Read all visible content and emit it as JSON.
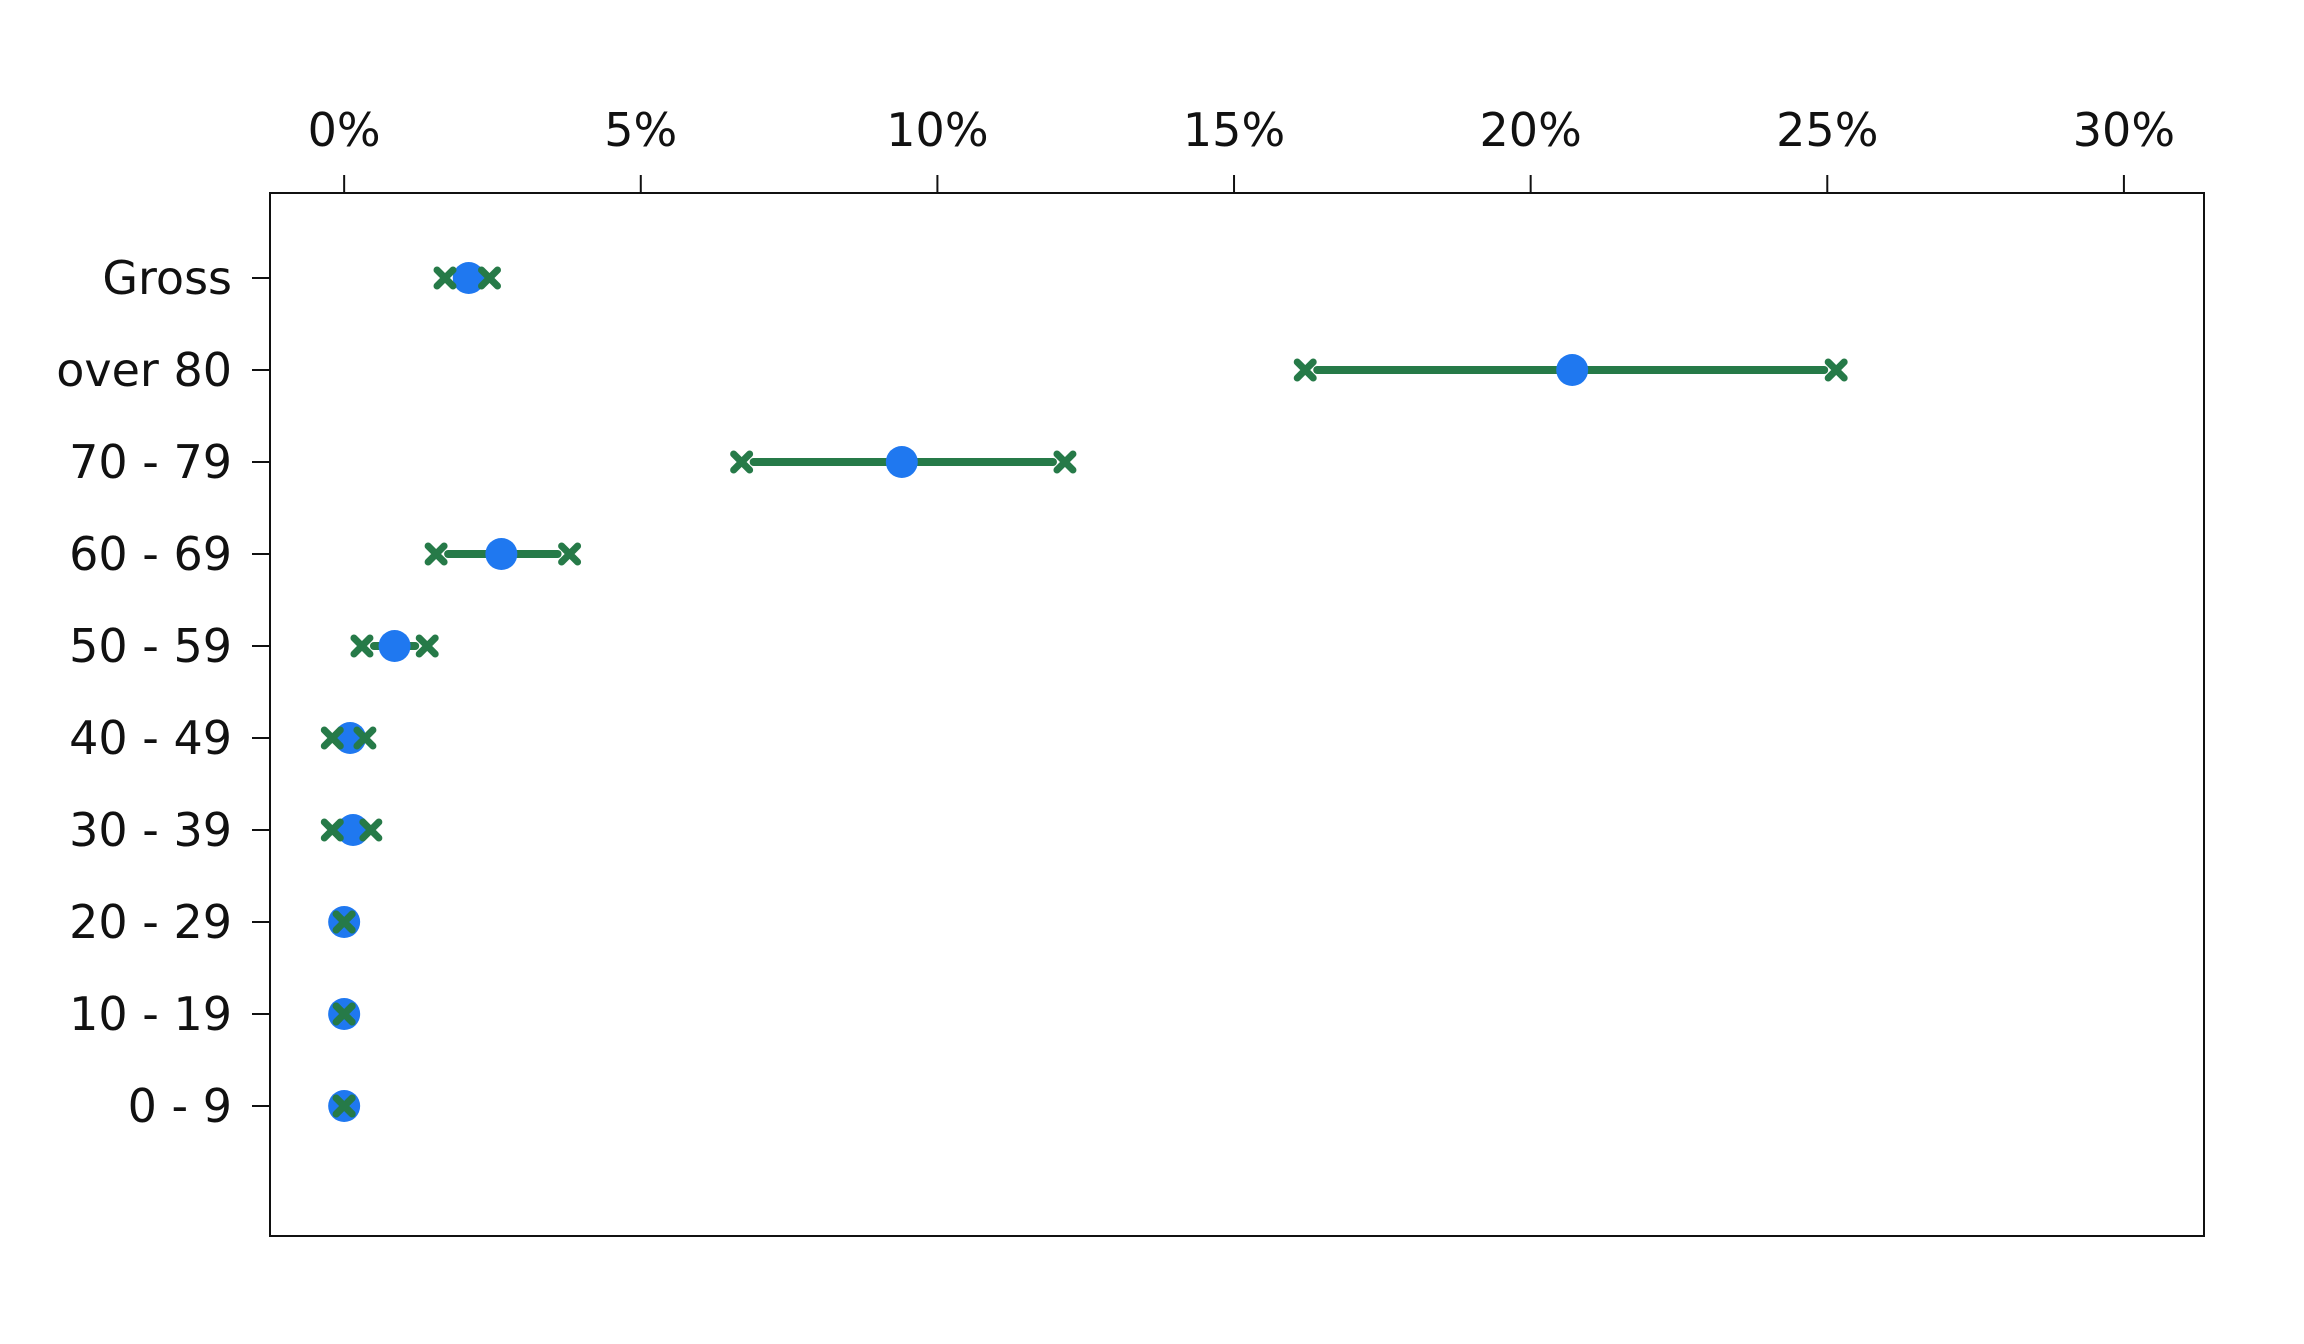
{
  "chart_data": {
    "type": "dot-interval",
    "title": "",
    "xlabel": "",
    "ylabel": "",
    "x_axis_position": "top",
    "xlim": [
      -0.0125,
      0.3135
    ],
    "xticks": [
      0,
      0.05,
      0.1,
      0.15,
      0.2,
      0.25,
      0.3
    ],
    "xtick_labels": [
      "0%",
      "5%",
      "10%",
      "15%",
      "20%",
      "25%",
      "30%"
    ],
    "categories": [
      "Gross",
      "over 80",
      "70 - 79",
      "60 - 69",
      "50 - 59",
      "40 - 49",
      "30 - 39",
      "20 - 29",
      "10 - 19",
      "0 - 9"
    ],
    "series": [
      {
        "role": "estimate",
        "marker": "circle",
        "color": "#1f78f0",
        "values": [
          0.021,
          0.207,
          0.094,
          0.0265,
          0.0085,
          0.001,
          0.0015,
          0.0,
          0.0,
          0.0
        ]
      },
      {
        "role": "interval",
        "marker": "x",
        "color": "#267a48",
        "lower": [
          0.017,
          0.162,
          0.067,
          0.0155,
          0.003,
          -0.002,
          -0.002,
          0.0,
          0.0,
          0.0
        ],
        "upper": [
          0.0245,
          0.2515,
          0.1215,
          0.038,
          0.014,
          0.0035,
          0.0045,
          0.0,
          0.0,
          0.0
        ]
      }
    ],
    "grid": false,
    "legend": "none"
  }
}
